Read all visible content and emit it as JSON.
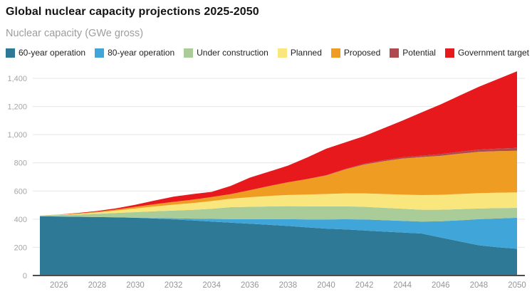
{
  "chart_data": {
    "type": "area",
    "stacked": true,
    "title": "Global nuclear capacity projections 2025-2050",
    "subtitle": "Nuclear capacity (GWe gross)",
    "xlabel": "",
    "ylabel": "Nuclear capacity (GWe gross)",
    "x": [
      2025,
      2026,
      2027,
      2028,
      2029,
      2030,
      2031,
      2032,
      2033,
      2034,
      2035,
      2036,
      2037,
      2038,
      2039,
      2040,
      2041,
      2042,
      2043,
      2044,
      2045,
      2046,
      2047,
      2048,
      2049,
      2050
    ],
    "xticks": [
      2026,
      2028,
      2030,
      2032,
      2034,
      2036,
      2038,
      2040,
      2042,
      2044,
      2046,
      2048,
      2050
    ],
    "ylim": [
      0,
      1400
    ],
    "ytick_step": 200,
    "grid": "horizontal",
    "legend_position": "top",
    "background": "#ffffff",
    "series": [
      {
        "name": "60-year operation",
        "slug": "60-year-operation",
        "color": "#2e7996",
        "values": [
          420,
          419,
          417,
          415,
          413,
          410,
          405,
          398,
          391,
          383,
          375,
          368,
          360,
          352,
          342,
          333,
          327,
          320,
          312,
          305,
          298,
          270,
          242,
          215,
          200,
          190
        ]
      },
      {
        "name": "80-year operation",
        "slug": "80-year-operation",
        "color": "#40a5d8",
        "values": [
          0,
          0,
          0,
          0,
          0,
          0,
          3,
          8,
          13,
          19,
          25,
          32,
          40,
          48,
          56,
          65,
          72,
          78,
          81,
          83,
          85,
          115,
          150,
          185,
          205,
          220
        ]
      },
      {
        "name": "Under construction",
        "slug": "under-construction",
        "color": "#a9cc99",
        "values": [
          6,
          10,
          16,
          23,
          31,
          40,
          48,
          55,
          62,
          72,
          85,
          88,
          90,
          92,
          93,
          93,
          92,
          90,
          88,
          86,
          84,
          82,
          79,
          76,
          73,
          70
        ]
      },
      {
        "name": "Planned",
        "slug": "planned",
        "color": "#f9e77d",
        "values": [
          0,
          2,
          5,
          10,
          17,
          26,
          34,
          42,
          48,
          55,
          60,
          68,
          75,
          80,
          84,
          88,
          92,
          95,
          98,
          100,
          104,
          106,
          108,
          109,
          110,
          110
        ]
      },
      {
        "name": "Proposed",
        "slug": "proposed",
        "color": "#ef9c23",
        "values": [
          0,
          1,
          3,
          5,
          8,
          12,
          16,
          20,
          24,
          28,
          33,
          50,
          70,
          90,
          110,
          131,
          170,
          205,
          232,
          256,
          270,
          277,
          286,
          293,
          295,
          296
        ]
      },
      {
        "name": "Potential",
        "slug": "potential",
        "color": "#ad4b4f",
        "values": [
          0,
          0,
          0,
          0,
          0,
          0,
          0,
          0,
          0,
          0,
          0,
          0,
          0,
          0,
          0,
          2,
          4,
          6,
          8,
          9,
          10,
          12,
          14,
          16,
          18,
          20
        ]
      },
      {
        "name": "Government target",
        "slug": "government-target",
        "color": "#e8191d",
        "values": [
          0,
          1,
          3,
          5,
          8,
          14,
          26,
          37,
          40,
          37,
          58,
          89,
          102,
          118,
          153,
          188,
          188,
          196,
          226,
          261,
          307,
          353,
          399,
          446,
          494,
          544
        ]
      }
    ]
  }
}
